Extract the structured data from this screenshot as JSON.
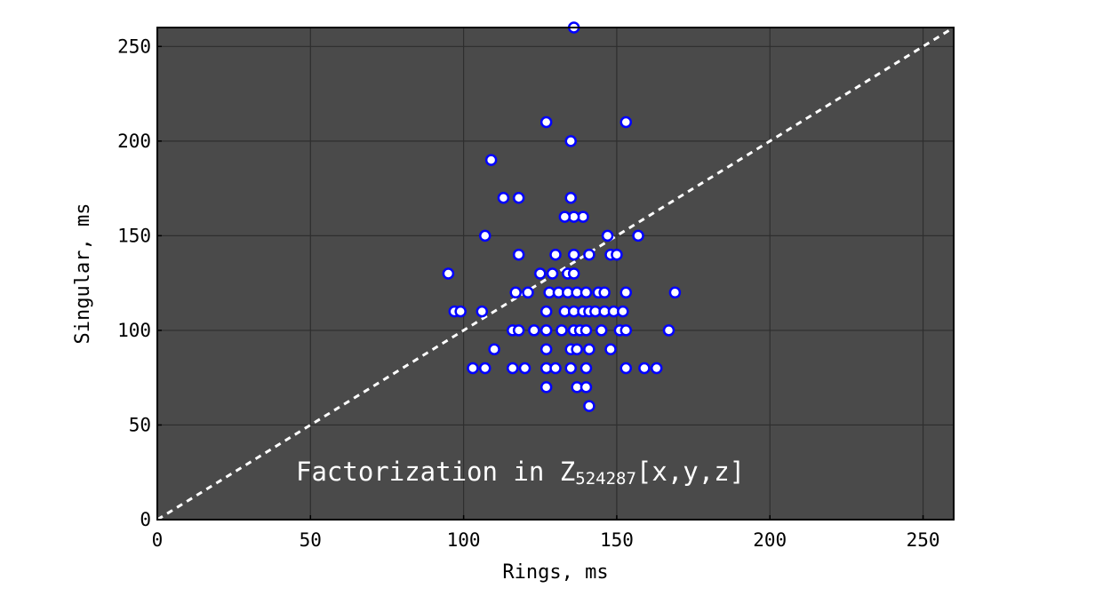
{
  "chart_data": {
    "type": "scatter",
    "xlabel": "Rings, ms",
    "ylabel": "Singular, ms",
    "xlim": [
      0,
      260
    ],
    "ylim": [
      0,
      260
    ],
    "xticks": [
      0,
      50,
      100,
      150,
      200,
      250
    ],
    "yticks": [
      0,
      50,
      100,
      150,
      200,
      250
    ],
    "grid": true,
    "background": "#4a4a4a",
    "marker_color": "#0000ff",
    "marker_face": "#ffffff",
    "reference_line": {
      "from": [
        0,
        0
      ],
      "to": [
        260,
        260
      ],
      "style": "dashed",
      "color": "#ffffff"
    },
    "annotation": {
      "text_main": "Factorization in Z",
      "text_sub": "524287",
      "text_tail": "[x,y,z]"
    },
    "series": [
      {
        "x": [
          136,
          127,
          153,
          135,
          109,
          113,
          118,
          135,
          139,
          136,
          133,
          107,
          147,
          157,
          118,
          130,
          136,
          141,
          148,
          150,
          95,
          125,
          129,
          134,
          136,
          117,
          121,
          128,
          131,
          134,
          137,
          140,
          144,
          146,
          153,
          169,
          97,
          99,
          106,
          127,
          133,
          136,
          139,
          141,
          143,
          146,
          149,
          152,
          116,
          118,
          123,
          127,
          132,
          136,
          138,
          140,
          145,
          151,
          153,
          167,
          110,
          127,
          135,
          137,
          141,
          148,
          103,
          107,
          116,
          120,
          127,
          130,
          135,
          140,
          153,
          159,
          163,
          127,
          137,
          140,
          141
        ],
        "y": [
          260,
          210,
          210,
          200,
          190,
          170,
          170,
          170,
          160,
          160,
          160,
          150,
          150,
          150,
          140,
          140,
          140,
          140,
          140,
          140,
          130,
          130,
          130,
          130,
          130,
          120,
          120,
          120,
          120,
          120,
          120,
          120,
          120,
          120,
          120,
          120,
          110,
          110,
          110,
          110,
          110,
          110,
          110,
          110,
          110,
          110,
          110,
          110,
          100,
          100,
          100,
          100,
          100,
          100,
          100,
          100,
          100,
          100,
          100,
          100,
          90,
          90,
          90,
          90,
          90,
          90,
          80,
          80,
          80,
          80,
          80,
          80,
          80,
          80,
          80,
          80,
          80,
          70,
          70,
          70,
          60
        ]
      }
    ]
  }
}
